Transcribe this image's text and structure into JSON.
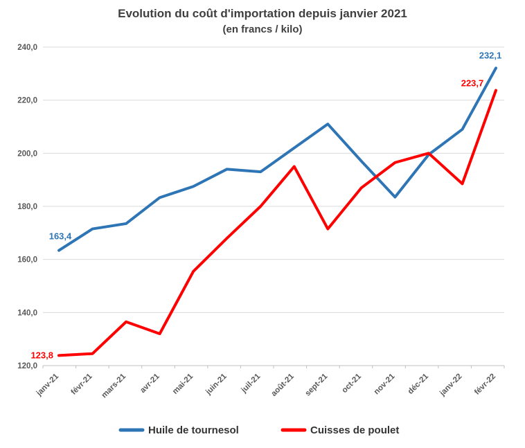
{
  "title": "Evolution du coût d'importation depuis janvier 2021",
  "subtitle": "(en francs / kilo)",
  "colors": {
    "grid": "#D9D9D9",
    "axis": "#BFBFBF",
    "title_text": "#3F3F3F",
    "tick_text": "#595959"
  },
  "chart_data": {
    "type": "line",
    "title": "Evolution du coût d'importation depuis janvier 2021",
    "subtitle": "(en francs / kilo)",
    "categories": [
      "janv-21",
      "févr-21",
      "mars-21",
      "avr-21",
      "mai-21",
      "juin-21",
      "juil-21",
      "août-21",
      "sept-21",
      "oct-21",
      "nov-21",
      "déc-21",
      "janv-22",
      "févr-22"
    ],
    "series": [
      {
        "name": "Huile de tournesol",
        "color": "#2E75B6",
        "values": [
          163.4,
          171.5,
          173.5,
          183.3,
          187.5,
          194.0,
          193.0,
          202.0,
          211.0,
          197.0,
          183.5,
          199.5,
          209.0,
          232.1
        ],
        "labels": [
          {
            "index": 0,
            "text": "163,4",
            "dx": 2,
            "dy": -16,
            "anchor": "middle"
          },
          {
            "index": 13,
            "text": "232,1",
            "dx": -8,
            "dy": -14,
            "anchor": "middle"
          }
        ]
      },
      {
        "name": "Cuisses de poulet",
        "color": "#FF0000",
        "values": [
          123.8,
          124.5,
          136.5,
          132.0,
          155.5,
          168.0,
          180.0,
          195.0,
          171.5,
          187.0,
          196.5,
          200.0,
          188.5,
          223.7
        ],
        "labels": [
          {
            "index": 0,
            "text": "123,8",
            "dx": -8,
            "dy": 4,
            "anchor": "end"
          },
          {
            "index": 13,
            "text": "223,7",
            "dx": -34,
            "dy": -6,
            "anchor": "middle"
          }
        ]
      }
    ],
    "ylim": [
      120,
      240
    ],
    "ytick_step": 20,
    "ytick_format": "comma-decimal-1",
    "grid": true,
    "legend_position": "bottom"
  }
}
